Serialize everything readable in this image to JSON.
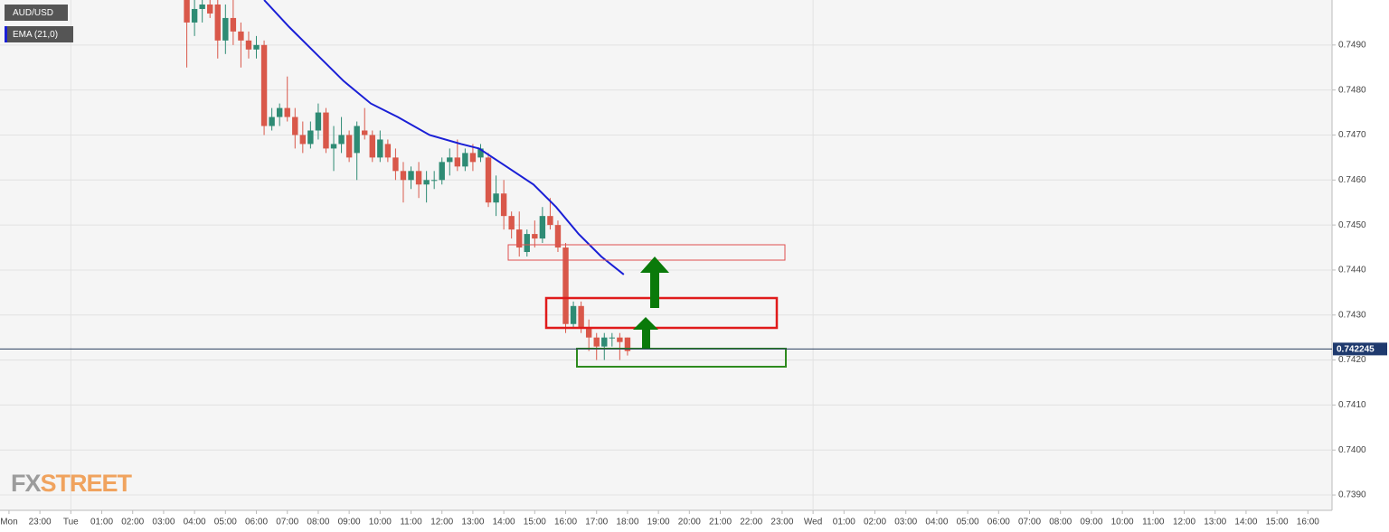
{
  "chart_data": {
    "type": "candlestick",
    "legend": [
      "AUD/USD",
      "EMA (21,0)"
    ],
    "watermark": {
      "gray": "FX",
      "orange": "STREET"
    },
    "xlim": [
      -0.29,
      42.78
    ],
    "xticks": [
      {
        "value": 0,
        "label": "Mon"
      },
      {
        "value": 1,
        "label": "23:00"
      },
      {
        "value": 2,
        "label": "Tue"
      },
      {
        "value": 3,
        "label": "01:00"
      },
      {
        "value": 4,
        "label": "02:00"
      },
      {
        "value": 5,
        "label": "03:00"
      },
      {
        "value": 6,
        "label": "04:00"
      },
      {
        "value": 7,
        "label": "05:00"
      },
      {
        "value": 8,
        "label": "06:00"
      },
      {
        "value": 9,
        "label": "07:00"
      },
      {
        "value": 10,
        "label": "08:00"
      },
      {
        "value": 11,
        "label": "09:00"
      },
      {
        "value": 12,
        "label": "10:00"
      },
      {
        "value": 13,
        "label": "11:00"
      },
      {
        "value": 14,
        "label": "12:00"
      },
      {
        "value": 15,
        "label": "13:00"
      },
      {
        "value": 16,
        "label": "14:00"
      },
      {
        "value": 17,
        "label": "15:00"
      },
      {
        "value": 18,
        "label": "16:00"
      },
      {
        "value": 19,
        "label": "17:00"
      },
      {
        "value": 20,
        "label": "18:00"
      },
      {
        "value": 21,
        "label": "19:00"
      },
      {
        "value": 22,
        "label": "20:00"
      },
      {
        "value": 23,
        "label": "21:00"
      },
      {
        "value": 24,
        "label": "22:00"
      },
      {
        "value": 25,
        "label": "23:00"
      },
      {
        "value": 26,
        "label": "Wed"
      },
      {
        "value": 27,
        "label": "01:00"
      },
      {
        "value": 28,
        "label": "02:00"
      },
      {
        "value": 29,
        "label": "03:00"
      },
      {
        "value": 30,
        "label": "04:00"
      },
      {
        "value": 31,
        "label": "05:00"
      },
      {
        "value": 32,
        "label": "06:00"
      },
      {
        "value": 33,
        "label": "07:00"
      },
      {
        "value": 34,
        "label": "08:00"
      },
      {
        "value": 35,
        "label": "09:00"
      },
      {
        "value": 36,
        "label": "10:00"
      },
      {
        "value": 37,
        "label": "11:00"
      },
      {
        "value": 38,
        "label": "12:00"
      },
      {
        "value": 39,
        "label": "13:00"
      },
      {
        "value": 40,
        "label": "14:00"
      },
      {
        "value": 41,
        "label": "15:00"
      },
      {
        "value": 42,
        "label": "16:00"
      }
    ],
    "day_grid": [
      2,
      26
    ],
    "ylim": [
      0.73866,
      0.75
    ],
    "yticks": [
      {
        "value": 0.739,
        "label": "0.7390"
      },
      {
        "value": 0.74,
        "label": "0.7400"
      },
      {
        "value": 0.741,
        "label": "0.7410"
      },
      {
        "value": 0.742,
        "label": "0.7420"
      },
      {
        "value": 0.743,
        "label": "0.7430"
      },
      {
        "value": 0.744,
        "label": "0.7440"
      },
      {
        "value": 0.745,
        "label": "0.7450"
      },
      {
        "value": 0.746,
        "label": "0.7460"
      },
      {
        "value": 0.747,
        "label": "0.7470"
      },
      {
        "value": 0.748,
        "label": "0.7480"
      },
      {
        "value": 0.749,
        "label": "0.7490"
      }
    ],
    "grid": true,
    "up_color": "#2e8b74",
    "down_color": "#d9584a",
    "x": [
      5.75,
      6,
      6.25,
      6.5,
      6.75,
      7,
      7.25,
      7.5,
      7.75,
      8,
      8.25,
      8.5,
      8.75,
      9,
      9.25,
      9.5,
      9.75,
      10,
      10.25,
      10.5,
      10.75,
      11,
      11.25,
      11.5,
      11.75,
      12,
      12.25,
      12.5,
      12.75,
      13,
      13.25,
      13.5,
      13.75,
      14,
      14.25,
      14.5,
      14.75,
      15,
      15.25,
      15.5,
      15.75,
      16,
      16.25,
      16.5,
      16.75,
      17,
      17.25,
      17.5,
      17.75,
      18,
      18.25,
      18.5,
      18.75,
      19,
      19.25,
      19.5,
      19.75,
      20
    ],
    "open": [
      0.75,
      0.7495,
      0.7498,
      0.7499,
      0.7499,
      0.7491,
      0.7496,
      0.7493,
      0.7491,
      0.7489,
      0.749,
      0.7472,
      0.7474,
      0.7476,
      0.7474,
      0.747,
      0.7468,
      0.7471,
      0.7475,
      0.7467,
      0.7468,
      0.747,
      0.7466,
      0.7471,
      0.747,
      0.7465,
      0.7468,
      0.7465,
      0.7462,
      0.746,
      0.7462,
      0.7459,
      0.746,
      0.746,
      0.7464,
      0.7465,
      0.7463,
      0.7466,
      0.7465,
      0.7465,
      0.7455,
      0.7457,
      0.7452,
      0.7449,
      0.7444,
      0.7448,
      0.7447,
      0.7452,
      0.745,
      0.7445,
      0.7428,
      0.7432,
      0.7427,
      0.7425,
      0.7423,
      0.7425,
      0.7425,
      0.7425
    ],
    "high": [
      0.7501,
      0.75,
      0.7502,
      0.75,
      0.75,
      0.7499,
      0.75,
      0.7495,
      0.7493,
      0.7492,
      0.7491,
      0.7476,
      0.7477,
      0.7483,
      0.7476,
      0.7473,
      0.7473,
      0.7477,
      0.7476,
      0.7472,
      0.7474,
      0.7471,
      0.7473,
      0.7476,
      0.7471,
      0.7471,
      0.7469,
      0.7467,
      0.7464,
      0.7463,
      0.7464,
      0.7462,
      0.7462,
      0.7465,
      0.7467,
      0.7469,
      0.7467,
      0.7468,
      0.7468,
      0.7466,
      0.7461,
      0.746,
      0.7453,
      0.7453,
      0.7449,
      0.7451,
      0.7454,
      0.7456,
      0.7451,
      0.7446,
      0.7433,
      0.7433,
      0.7429,
      0.7426,
      0.7426,
      0.7426,
      0.7426,
      0.7425
    ],
    "low": [
      0.7485,
      0.7492,
      0.7495,
      0.7496,
      0.7487,
      0.7488,
      0.749,
      0.7485,
      0.7487,
      0.7487,
      0.747,
      0.7471,
      0.7472,
      0.7473,
      0.7467,
      0.7466,
      0.7467,
      0.7469,
      0.7466,
      0.7462,
      0.7466,
      0.7464,
      0.746,
      0.7469,
      0.7464,
      0.7464,
      0.7464,
      0.746,
      0.7455,
      0.7458,
      0.7456,
      0.7455,
      0.7458,
      0.7459,
      0.7461,
      0.7462,
      0.7462,
      0.7462,
      0.7464,
      0.7454,
      0.7452,
      0.7449,
      0.7447,
      0.7443,
      0.7443,
      0.7445,
      0.7446,
      0.7449,
      0.7444,
      0.7426,
      0.7427,
      0.7426,
      0.7422,
      0.742,
      0.742,
      0.7423,
      0.742,
      0.7421
    ],
    "close": [
      0.7495,
      0.7498,
      0.7499,
      0.7497,
      0.7491,
      0.7496,
      0.7493,
      0.7491,
      0.7489,
      0.749,
      0.7472,
      0.7474,
      0.7476,
      0.7474,
      0.747,
      0.7468,
      0.7471,
      0.7475,
      0.7467,
      0.7468,
      0.747,
      0.7465,
      0.7472,
      0.747,
      0.7465,
      0.7469,
      0.7465,
      0.7462,
      0.746,
      0.7462,
      0.7459,
      0.746,
      0.746,
      0.7464,
      0.7465,
      0.7463,
      0.7466,
      0.7464,
      0.7467,
      0.7455,
      0.7457,
      0.7452,
      0.7449,
      0.7445,
      0.7448,
      0.7447,
      0.7452,
      0.745,
      0.7445,
      0.7428,
      0.7432,
      0.7427,
      0.7425,
      0.7423,
      0.7425,
      0.7425,
      0.7424,
      0.7422
    ],
    "ema": {
      "color": "#1a1fd6",
      "x": [
        8.25,
        9.06,
        9.94,
        10.82,
        11.7,
        12.57,
        13.6,
        14.62,
        15.2,
        16.08,
        16.96,
        17.69,
        18.42,
        19.15,
        19.88
      ],
      "values": [
        0.75,
        0.7494,
        0.7488,
        0.7482,
        0.7477,
        0.7474,
        0.747,
        0.7468,
        0.7467,
        0.7463,
        0.7459,
        0.7454,
        0.7448,
        0.7443,
        0.7439
      ]
    },
    "current_price": 0.742245
  }
}
